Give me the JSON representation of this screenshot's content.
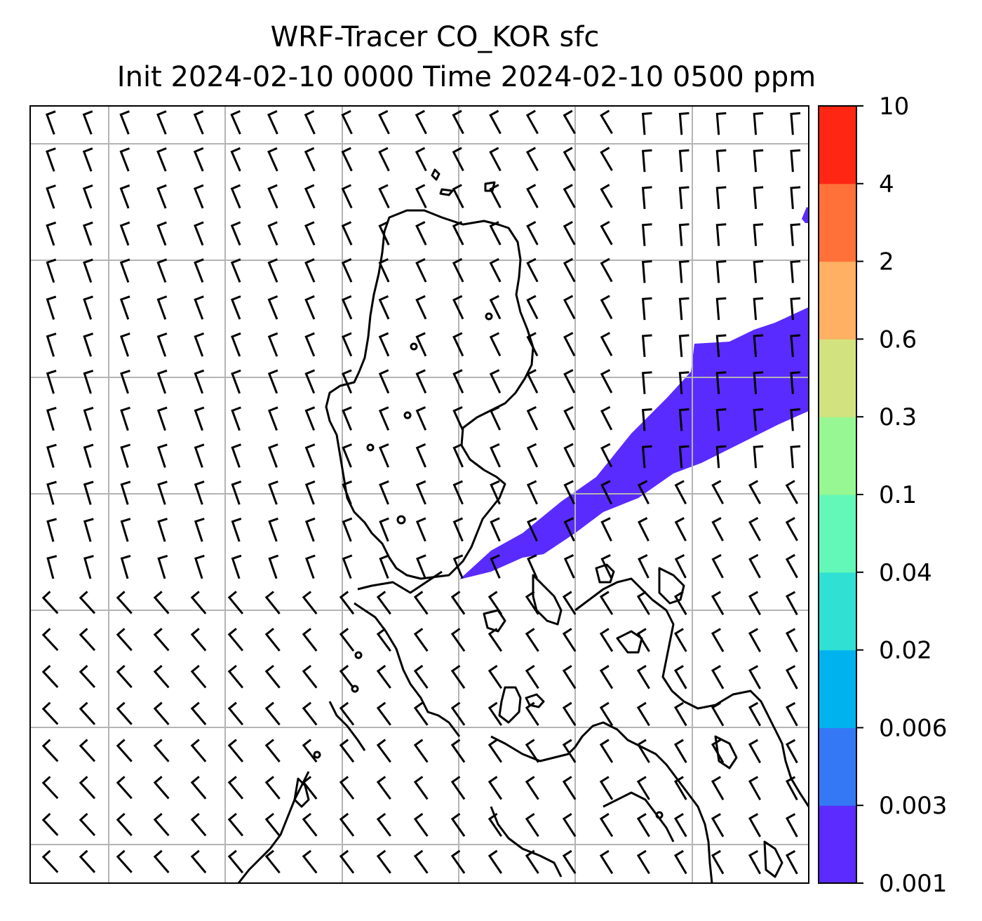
{
  "title": {
    "line1": "WRF-Tracer CO_KOR sfc",
    "line2": "Init 2024-02-10 0000 Time 2024-02-10 0500 ppm"
  },
  "map": {
    "region": "Korean Peninsula and Japan",
    "field": "CO_KOR surface tracer concentration",
    "units": "ppm",
    "overlay": "wind barbs",
    "gridlines": true,
    "plume_color": "#5a2bff"
  },
  "colorbar": {
    "levels": [
      "0.001",
      "0.003",
      "0.006",
      "0.02",
      "0.04",
      "0.1",
      "0.3",
      "0.6",
      "2",
      "4",
      "10"
    ],
    "colors": [
      "#5b2bff",
      "#3478f5",
      "#00b3ee",
      "#2fe0d3",
      "#63f8b7",
      "#97f792",
      "#d2e27f",
      "#ffb062",
      "#ff7139",
      "#ff2714"
    ]
  }
}
